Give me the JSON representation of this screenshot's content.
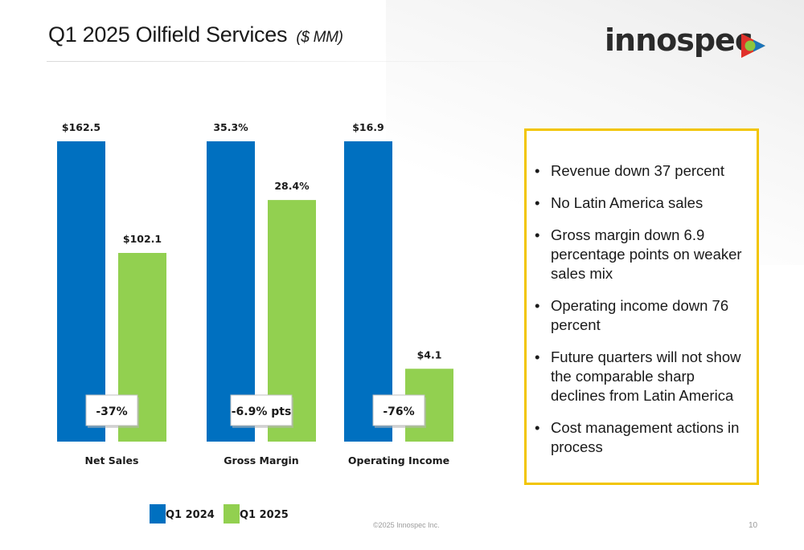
{
  "slide": {
    "title": "Q1 2025 Oilfield Services",
    "title_unit": "($ MM)",
    "logo_text": "innospec",
    "copyright": "©2025 Innospec Inc.",
    "page_number": "10"
  },
  "colors": {
    "q1_2024": "#0070c0",
    "q1_2025": "#92d050",
    "box_border": "#f2c500"
  },
  "chart_data": {
    "type": "bar",
    "categories": [
      "Net Sales",
      "Gross Margin",
      "Operating Income"
    ],
    "series": [
      {
        "name": "Q1 2024",
        "values": [
          162.5,
          35.3,
          16.9
        ],
        "labels": [
          "$162.5",
          "35.3%",
          "$16.9"
        ]
      },
      {
        "name": "Q1 2025",
        "values": [
          102.1,
          28.4,
          4.1
        ],
        "labels": [
          "$102.1",
          "28.4%",
          "$4.1"
        ]
      }
    ],
    "change_labels": [
      "-37%",
      "-6.9% pts",
      "-76%"
    ],
    "scale_note": "each category scaled independently",
    "legend_position": "bottom",
    "grid": false
  },
  "bullets": [
    "Revenue down 37 percent",
    "No Latin America sales",
    "Gross margin down 6.9 percentage points on weaker sales mix",
    "Operating income down 76 percent",
    "Future quarters will not show the comparable sharp declines from Latin America",
    "Cost management actions in process"
  ]
}
